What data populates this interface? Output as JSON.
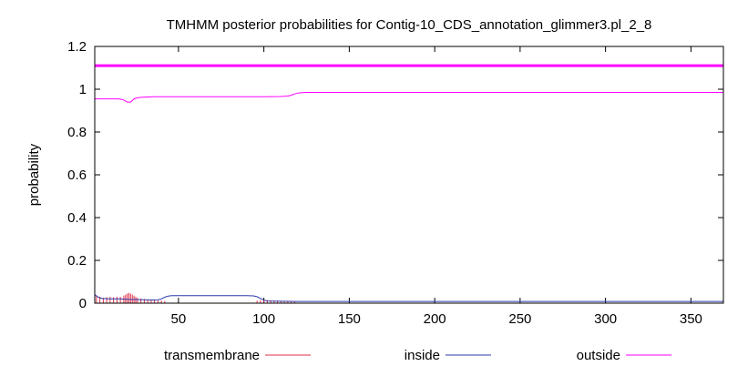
{
  "chart_data": {
    "type": "line",
    "title": "TMHMM posterior probabilities for Contig-10_CDS_annotation_glimmer3.pl_2_8",
    "xlabel": "",
    "ylabel": "probability",
    "xlim": [
      1,
      369
    ],
    "ylim": [
      0,
      1.2
    ],
    "xticks": [
      50,
      100,
      150,
      200,
      250,
      300,
      350
    ],
    "yticks": [
      0,
      0.2,
      0.4,
      0.6,
      0.8,
      1,
      1.2
    ],
    "ytick_labels": [
      "0",
      "0.2",
      "0.4",
      "0.6",
      "0.8",
      "1",
      "1.2"
    ],
    "grid": false,
    "legend": "bottom",
    "colors": {
      "transmembrane": "#e0304a",
      "inside": "#2c3aa8",
      "outside": "#ff00ff",
      "topology_bar": "#ff00ff"
    },
    "topology_bar": {
      "y": 1.11,
      "x_start": 1,
      "x_end": 369
    },
    "series": [
      {
        "name": "transmembrane",
        "style": "impulses",
        "x": [
          2,
          4,
          6,
          8,
          10,
          12,
          14,
          16,
          18,
          19,
          20,
          21,
          22,
          23,
          24,
          25,
          26,
          28,
          30,
          32,
          34,
          36,
          38,
          40,
          42,
          96,
          98,
          100,
          102,
          104,
          106,
          108,
          110,
          112,
          114,
          116,
          118
        ],
        "values": [
          0.035,
          0.03,
          0.025,
          0.028,
          0.03,
          0.028,
          0.03,
          0.03,
          0.035,
          0.04,
          0.045,
          0.048,
          0.045,
          0.04,
          0.035,
          0.03,
          0.025,
          0.022,
          0.02,
          0.018,
          0.017,
          0.015,
          0.013,
          0.012,
          0.01,
          0.012,
          0.014,
          0.015,
          0.015,
          0.014,
          0.013,
          0.012,
          0.011,
          0.01,
          0.009,
          0.008,
          0.006
        ]
      },
      {
        "name": "inside",
        "style": "line",
        "x": [
          1,
          3,
          5,
          10,
          15,
          20,
          25,
          30,
          35,
          38,
          40,
          42,
          44,
          46,
          50,
          60,
          70,
          80,
          90,
          94,
          96,
          98,
          100,
          102,
          110,
          120,
          125,
          130,
          200,
          300,
          369
        ],
        "values": [
          0.04,
          0.028,
          0.022,
          0.02,
          0.02,
          0.018,
          0.017,
          0.016,
          0.015,
          0.016,
          0.02,
          0.028,
          0.033,
          0.035,
          0.035,
          0.035,
          0.035,
          0.035,
          0.035,
          0.034,
          0.03,
          0.022,
          0.014,
          0.01,
          0.009,
          0.008,
          0.008,
          0.008,
          0.008,
          0.008,
          0.008
        ]
      },
      {
        "name": "outside",
        "style": "line",
        "x": [
          1,
          5,
          10,
          15,
          18,
          20,
          22,
          24,
          26,
          28,
          30,
          35,
          40,
          50,
          60,
          80,
          100,
          110,
          114,
          116,
          118,
          120,
          122,
          125,
          130,
          200,
          300,
          369
        ],
        "values": [
          0.955,
          0.955,
          0.955,
          0.955,
          0.95,
          0.94,
          0.94,
          0.955,
          0.96,
          0.962,
          0.963,
          0.965,
          0.965,
          0.965,
          0.965,
          0.965,
          0.965,
          0.966,
          0.968,
          0.972,
          0.978,
          0.982,
          0.984,
          0.985,
          0.985,
          0.985,
          0.985,
          0.985
        ]
      }
    ]
  }
}
